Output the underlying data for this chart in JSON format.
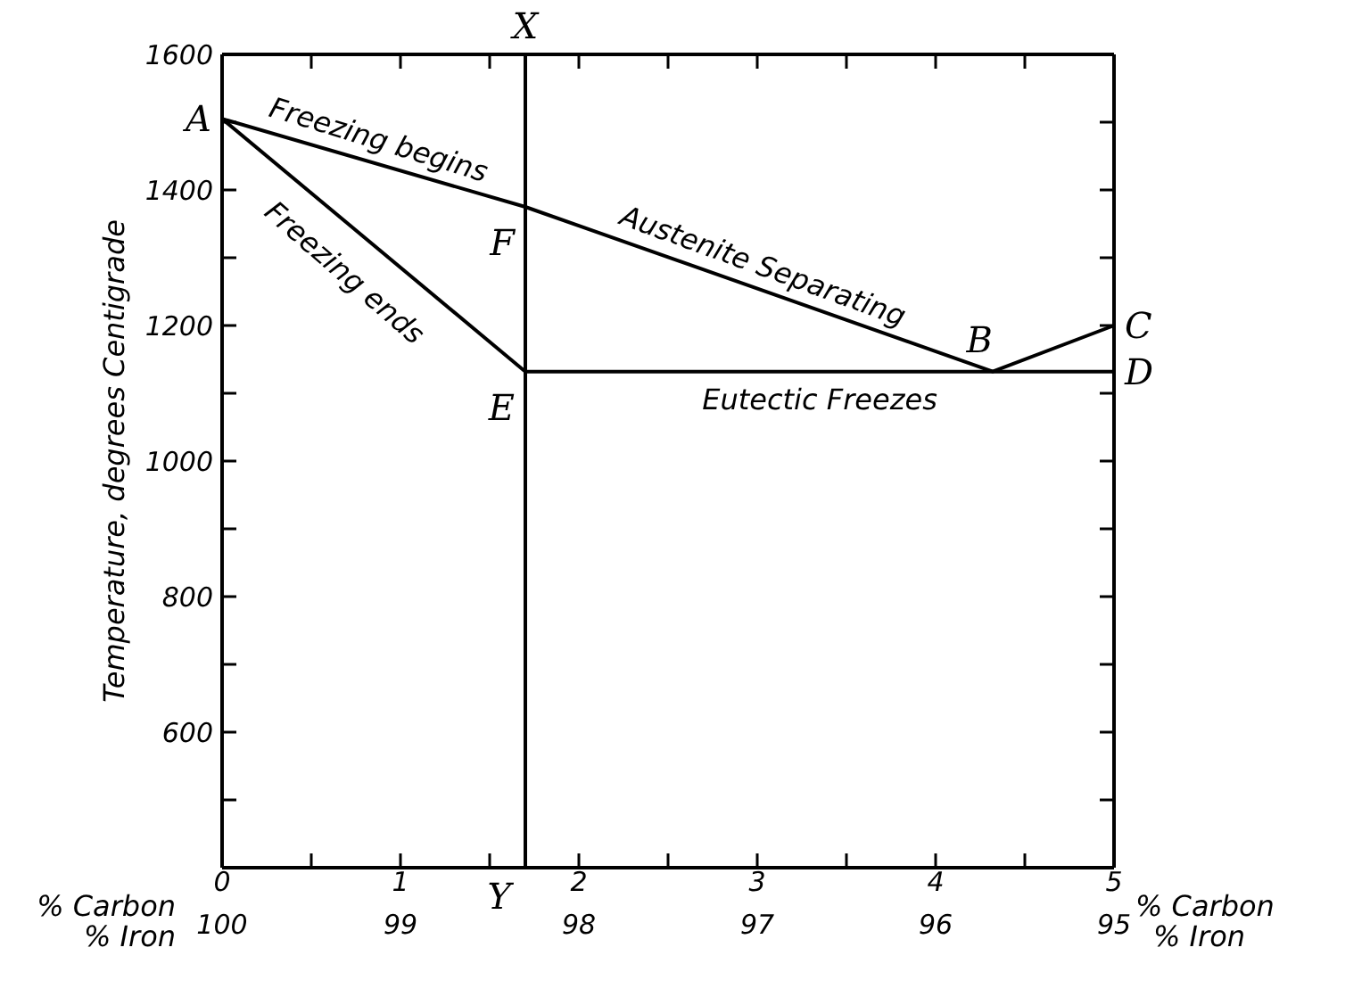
{
  "chart_data": {
    "type": "line",
    "ylabel": "Temperature, degrees Centigrade",
    "xlabel": "% Carbon",
    "x2label": "% Iron",
    "xlim": [
      0,
      5
    ],
    "xticks": [
      0,
      {
        "value": 0.5,
        "label": null
      },
      1,
      {
        "value": 1.5,
        "label": null
      },
      2,
      {
        "value": 2.5,
        "label": null
      },
      3,
      {
        "value": 3.5,
        "label": null
      },
      4,
      {
        "value": 4.5,
        "label": null
      },
      5
    ],
    "x2lim": [
      100,
      95
    ],
    "x2ticks": [
      100,
      99,
      98,
      97,
      96,
      95
    ],
    "ylim": [
      400,
      1600
    ],
    "yticks": [
      {
        "value": 500,
        "label": null
      },
      600,
      {
        "value": 700,
        "label": null
      },
      800,
      {
        "value": 900,
        "label": null
      },
      1000,
      {
        "value": 1100,
        "label": null
      },
      1200,
      {
        "value": 1300,
        "label": null
      },
      1400,
      {
        "value": 1500,
        "label": null
      },
      1600
    ],
    "grid": false,
    "marker": "none",
    "line_style": "solid",
    "series": [
      {
        "color": "#000000",
        "x": [
          0,
          1.7,
          4.32,
          5
        ],
        "values": [
          1505,
          1375,
          1132,
          1200
        ]
      },
      {
        "color": "#000000",
        "x": [
          0,
          1.7
        ],
        "values": [
          1505,
          1132
        ]
      },
      {
        "color": "#000000",
        "x": [
          1.7,
          5
        ],
        "values": [
          1132,
          1132
        ]
      }
    ],
    "ref_lines": [
      {
        "axis": "x",
        "value": 1.7,
        "label": "X",
        "color": "#000000"
      }
    ],
    "annotations": [
      {
        "text": "Y",
        "x": 1.7,
        "y": 400
      },
      {
        "text": "A",
        "x": 0,
        "y": 1505
      },
      {
        "text": "F",
        "x": 1.7,
        "y": 1375
      },
      {
        "text": "E",
        "x": 1.7,
        "y": 1132
      },
      {
        "text": "B",
        "x": 4.32,
        "y": 1132
      },
      {
        "text": "C",
        "x": 5,
        "y": 1200
      },
      {
        "text": "D",
        "x": 5,
        "y": 1132
      },
      {
        "text": "Freezing begins",
        "x": 0.85,
        "y": 1440
      },
      {
        "text": "Freezing ends",
        "x": 0.85,
        "y": 1318
      },
      {
        "text": "Austenite Separating",
        "x": 3.0,
        "y": 1254
      },
      {
        "text": "Eutectic Freezes",
        "x": 3.35,
        "y": 1132
      }
    ]
  }
}
